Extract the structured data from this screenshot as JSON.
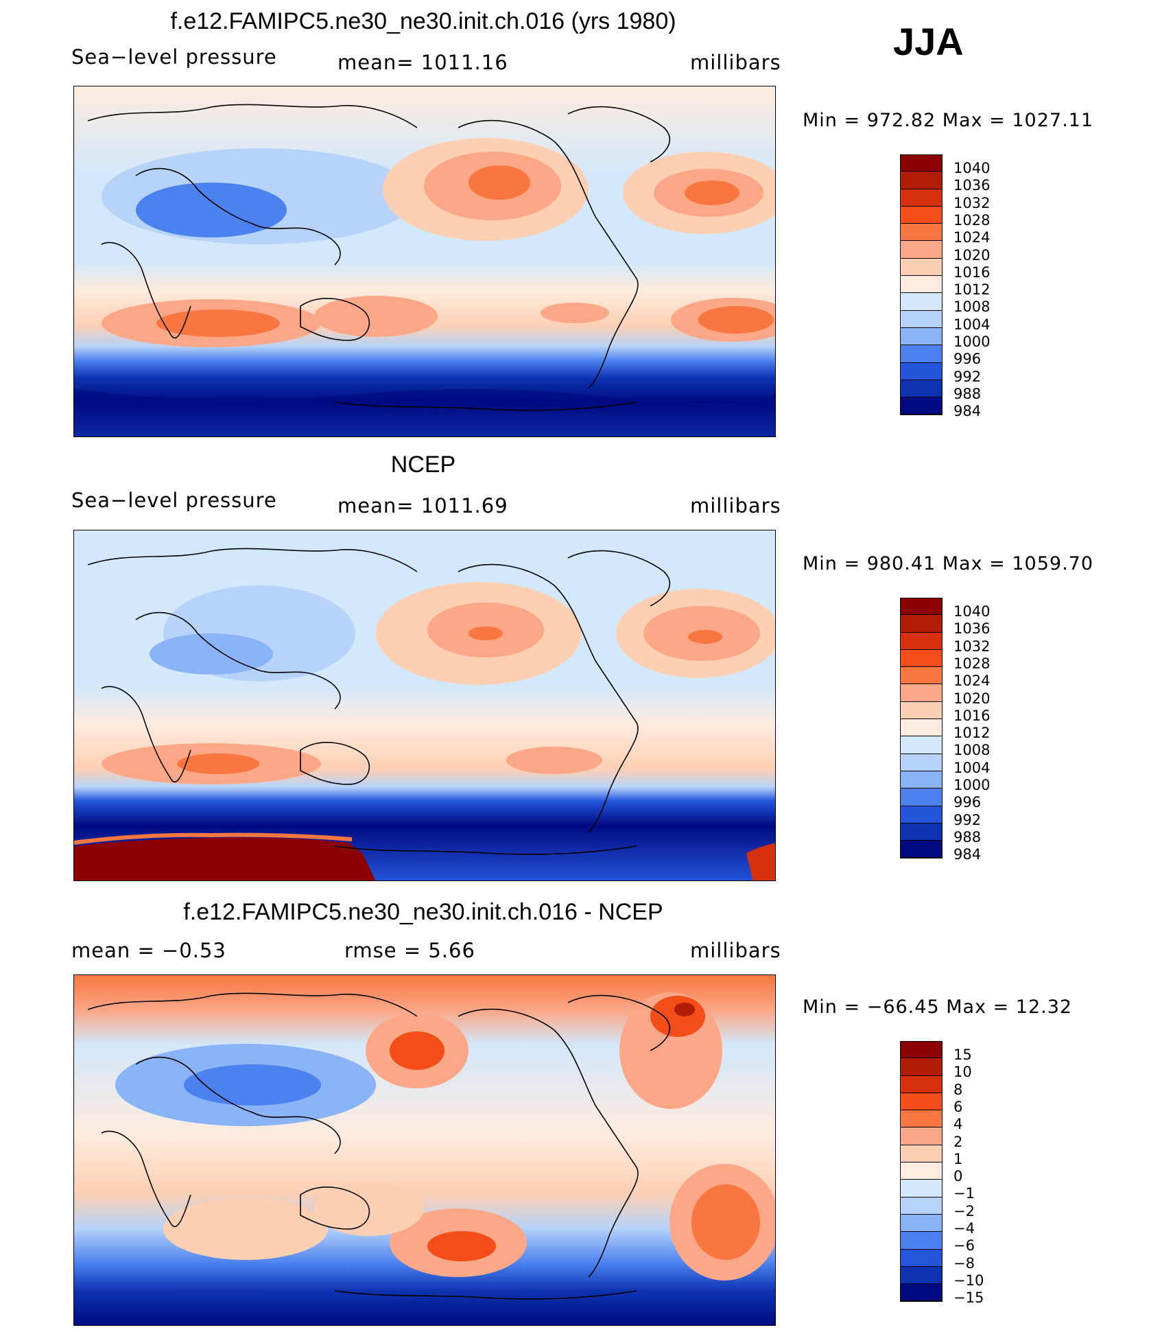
{
  "season": "JJA",
  "panels": [
    {
      "title": "f.e12.FAMIPC5.ne30_ne30.init.ch.016 (yrs 1980)",
      "left_label": "Sea−level pressure",
      "center_label": "mean=  1011.16",
      "right_label": "millibars",
      "minmax": "Min  =  972.82  Max  =  1027.11",
      "levels": [
        "1040",
        "1036",
        "1032",
        "1028",
        "1024",
        "1020",
        "1016",
        "1012",
        "1008",
        "1004",
        "1000",
        "996",
        "992",
        "988",
        "984"
      ]
    },
    {
      "title": "NCEP",
      "left_label": "Sea−level pressure",
      "center_label": "mean=  1011.69",
      "right_label": "millibars",
      "minmax": "Min  =  980.41  Max  =  1059.70",
      "levels": [
        "1040",
        "1036",
        "1032",
        "1028",
        "1024",
        "1020",
        "1016",
        "1012",
        "1008",
        "1004",
        "1000",
        "996",
        "992",
        "988",
        "984"
      ]
    },
    {
      "title": "f.e12.FAMIPC5.ne30_ne30.init.ch.016 - NCEP",
      "left_label": "mean  =    −0.53",
      "center_label": "rmse  =     5.66",
      "right_label": "millibars",
      "minmax": "Min  =  −66.45  Max  =    12.32",
      "levels": [
        "15",
        "10",
        "8",
        "6",
        "4",
        "2",
        "1",
        "0",
        "−1",
        "−2",
        "−4",
        "−6",
        "−8",
        "−10",
        "−15"
      ]
    }
  ],
  "colors": [
    "#8b0000",
    "#b01c05",
    "#d6300c",
    "#f34d1a",
    "#f8763f",
    "#fca788",
    "#fdd0b3",
    "#feecdf",
    "#d4e8fb",
    "#b7d3fa",
    "#8bb3f8",
    "#4c82f0",
    "#2456dc",
    "#0d32b0",
    "#000a80"
  ],
  "chart_data": {
    "type": "heatmap",
    "season": "JJA",
    "units": "millibars",
    "maps": [
      {
        "title": "f.e12.FAMIPC5.ne30_ne30.init.ch.016 (yrs 1980)",
        "variable": "Sea-level pressure",
        "mean": 1011.16,
        "min": 972.82,
        "max": 1027.11,
        "contour_levels": [
          984,
          988,
          992,
          996,
          1000,
          1004,
          1008,
          1012,
          1016,
          1020,
          1024,
          1028,
          1032,
          1036,
          1040
        ]
      },
      {
        "title": "NCEP",
        "variable": "Sea-level pressure",
        "mean": 1011.69,
        "min": 980.41,
        "max": 1059.7,
        "contour_levels": [
          984,
          988,
          992,
          996,
          1000,
          1004,
          1008,
          1012,
          1016,
          1020,
          1024,
          1028,
          1032,
          1036,
          1040
        ]
      },
      {
        "title": "f.e12.FAMIPC5.ne30_ne30.init.ch.016 - NCEP",
        "variable": "difference",
        "mean": -0.53,
        "rmse": 5.66,
        "min": -66.45,
        "max": 12.32,
        "contour_levels": [
          -15,
          -10,
          -8,
          -6,
          -4,
          -2,
          -1,
          0,
          1,
          2,
          4,
          6,
          8,
          10,
          15
        ]
      }
    ]
  }
}
